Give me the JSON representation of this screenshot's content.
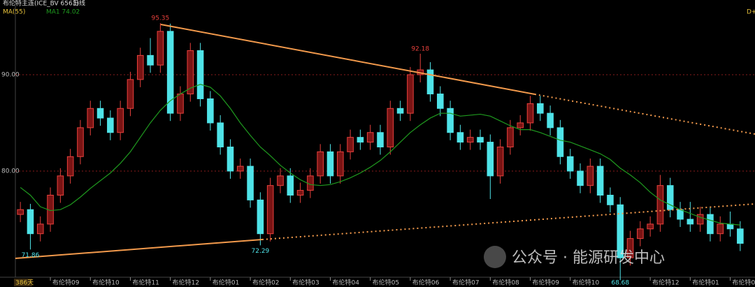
{
  "header": {
    "symbol": "布伦特主连(ICE_BV 6563)",
    "period": "日线",
    "indicator": "MA(55)",
    "ma_readout": "MA1 74.02",
    "corner": "D+"
  },
  "chart_data": {
    "type": "candlestick",
    "up_color": "#e8413c",
    "down_color": "#4fe3e8",
    "ma_color": "#1f9a1f",
    "grid": true,
    "ylim": [
      69.13,
      97.75
    ],
    "yticks": [
      {
        "value": 80,
        "label": "80.00"
      },
      {
        "value": 90,
        "label": "90.00"
      }
    ],
    "categories": [
      null,
      null,
      null,
      "布伦特09",
      null,
      null,
      null,
      "布伦特10",
      null,
      null,
      null,
      "布伦特11",
      null,
      null,
      null,
      "布伦特12",
      null,
      null,
      null,
      "布伦特01",
      null,
      null,
      null,
      "布伦特02",
      null,
      null,
      null,
      "布伦特03",
      null,
      null,
      null,
      "布伦特04",
      null,
      null,
      null,
      "布伦特05",
      null,
      null,
      null,
      "布伦特06",
      null,
      null,
      null,
      "布伦特07",
      null,
      null,
      null,
      "布伦特08",
      null,
      null,
      null,
      "布伦特09",
      null,
      null,
      null,
      "布伦特10",
      null,
      null,
      null,
      null,
      null,
      null,
      null,
      "布伦特12",
      null,
      null,
      null,
      "布伦特01",
      null,
      null,
      null,
      "布伦特02",
      null
    ],
    "open": [
      75.5,
      76.0,
      73.5,
      74.5,
      77.5,
      79.5,
      81.5,
      84.5,
      86.5,
      85.5,
      84.0,
      86.5,
      89.5,
      92.0,
      91.0,
      94.5,
      86.0,
      88.0,
      92.5,
      87.5,
      85.0,
      82.5,
      80.0,
      80.5,
      77.0,
      73.5,
      78.5,
      79.5,
      77.5,
      78.0,
      79.5,
      82.0,
      79.5,
      82.0,
      83.5,
      83.0,
      84.0,
      82.5,
      86.5,
      86.0,
      90.0,
      90.5,
      88.0,
      86.5,
      84.0,
      83.0,
      83.5,
      83.0,
      79.5,
      82.5,
      84.5,
      85.0,
      87.0,
      86.0,
      84.5,
      81.5,
      80.0,
      78.5,
      80.5,
      77.5,
      76.5,
      71.0,
      73.0,
      74.0,
      74.5,
      78.5,
      76.0,
      75.0,
      74.5,
      75.5,
      73.5,
      74.5,
      74.0
    ],
    "high": [
      76.8,
      76.6,
      75.3,
      78.3,
      80.3,
      82.3,
      85.3,
      87.3,
      87.3,
      86.3,
      87.3,
      90.3,
      92.8,
      93.8,
      95.35,
      95.3,
      88.8,
      93.3,
      93.3,
      88.3,
      85.8,
      83.3,
      81.3,
      81.3,
      77.8,
      79.3,
      80.3,
      80.3,
      78.8,
      80.3,
      82.8,
      82.8,
      82.8,
      84.3,
      84.3,
      84.8,
      84.8,
      87.3,
      87.3,
      90.8,
      92.18,
      91.3,
      88.8,
      87.3,
      84.8,
      84.3,
      84.3,
      83.8,
      83.3,
      85.3,
      85.8,
      87.8,
      87.8,
      86.8,
      85.3,
      82.3,
      80.8,
      81.3,
      81.3,
      78.3,
      77.3,
      73.8,
      74.8,
      75.3,
      79.6,
      79.3,
      76.8,
      76.8,
      76.3,
      76.3,
      75.3,
      75.8,
      74.8
    ],
    "low": [
      74.7,
      71.86,
      72.7,
      73.7,
      76.7,
      78.7,
      80.7,
      83.7,
      84.7,
      83.2,
      83.2,
      85.7,
      88.7,
      90.2,
      90.2,
      85.2,
      85.2,
      87.2,
      86.7,
      84.2,
      81.7,
      79.2,
      79.2,
      76.2,
      72.29,
      72.7,
      77.7,
      76.7,
      76.7,
      77.2,
      78.7,
      78.7,
      78.7,
      81.2,
      82.2,
      82.2,
      81.7,
      81.7,
      85.2,
      85.2,
      89.2,
      87.2,
      85.7,
      83.2,
      82.2,
      82.2,
      82.2,
      77.1,
      78.7,
      81.7,
      83.7,
      84.2,
      85.2,
      83.7,
      80.7,
      79.2,
      77.7,
      77.7,
      76.7,
      75.7,
      68.68,
      70.2,
      72.2,
      73.2,
      73.7,
      75.2,
      74.2,
      73.7,
      73.7,
      72.7,
      72.7,
      73.2,
      71.7
    ],
    "close": [
      76.0,
      73.5,
      74.5,
      77.5,
      79.5,
      81.5,
      84.5,
      86.5,
      85.5,
      84.0,
      86.5,
      89.5,
      92.0,
      91.0,
      94.5,
      86.0,
      88.0,
      92.5,
      87.5,
      85.0,
      82.5,
      80.0,
      80.5,
      77.0,
      73.5,
      78.5,
      79.5,
      77.5,
      78.0,
      79.5,
      82.0,
      79.5,
      82.0,
      83.5,
      83.0,
      84.0,
      82.5,
      86.5,
      86.0,
      90.0,
      90.5,
      88.0,
      86.5,
      84.0,
      83.0,
      83.5,
      83.0,
      79.5,
      82.5,
      84.5,
      85.0,
      87.0,
      86.0,
      84.5,
      81.5,
      80.0,
      78.5,
      80.5,
      77.5,
      76.5,
      71.0,
      73.0,
      74.0,
      74.5,
      78.5,
      76.0,
      75.0,
      74.5,
      75.5,
      73.5,
      74.5,
      74.0,
      72.5
    ],
    "ma": [
      78.3,
      77.5,
      76.3,
      75.9,
      76.0,
      76.5,
      77.3,
      78.2,
      79.0,
      79.8,
      80.8,
      82.0,
      83.5,
      85.0,
      86.3,
      87.3,
      88.0,
      88.6,
      89.0,
      88.7,
      87.8,
      86.5,
      85.0,
      83.7,
      82.5,
      81.6,
      80.6,
      79.8,
      79.1,
      78.6,
      78.5,
      78.6,
      78.9,
      79.3,
      79.8,
      80.4,
      81.1,
      82.0,
      83.0,
      84.0,
      84.8,
      85.5,
      86.0,
      86.0,
      85.7,
      85.8,
      85.9,
      85.7,
      85.2,
      84.7,
      84.3,
      84.3,
      84.0,
      83.6,
      83.2,
      83.0,
      82.6,
      82.2,
      81.8,
      81.2,
      80.3,
      79.6,
      78.8,
      77.8,
      77.0,
      76.5,
      76.0,
      75.6,
      75.2,
      74.9,
      74.6,
      74.5,
      74.4
    ],
    "high_labels": [
      14,
      40
    ],
    "low_labels": [
      1,
      24,
      60
    ],
    "day_count": "386天"
  },
  "watermark": "公众号 · 能源研发中心"
}
